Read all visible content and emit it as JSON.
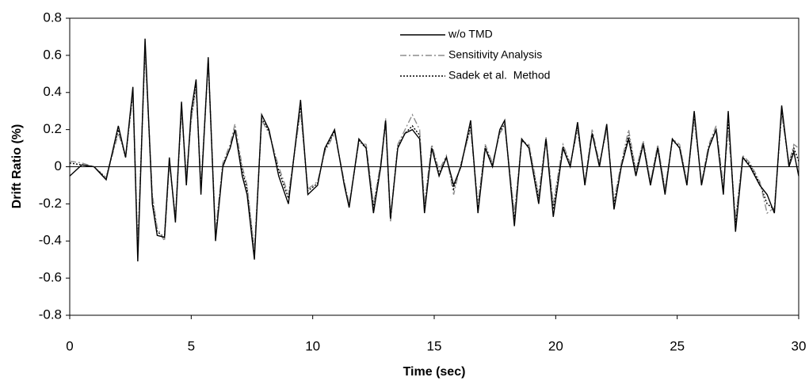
{
  "chart_data": {
    "type": "line",
    "xlabel": "Time (sec)",
    "ylabel": "Drift  Ratio (%)",
    "x": [
      0,
      0.5,
      1,
      1.5,
      2,
      2.3,
      2.6,
      2.8,
      3.1,
      3.4,
      3.6,
      3.9,
      4.1,
      4.35,
      4.6,
      4.8,
      5.0,
      5.2,
      5.4,
      5.7,
      6.0,
      6.3,
      6.6,
      6.8,
      7.1,
      7.3,
      7.6,
      7.9,
      8.2,
      8.6,
      9.0,
      9.5,
      9.8,
      10.2,
      10.5,
      10.9,
      11.3,
      11.5,
      11.9,
      12.2,
      12.5,
      12.8,
      13.0,
      13.2,
      13.5,
      13.8,
      14.1,
      14.4,
      14.6,
      14.9,
      15.2,
      15.5,
      15.8,
      16.1,
      16.5,
      16.8,
      17.1,
      17.4,
      17.7,
      17.9,
      18.3,
      18.6,
      18.9,
      19.3,
      19.6,
      19.9,
      20.3,
      20.6,
      20.9,
      21.2,
      21.5,
      21.8,
      22.1,
      22.4,
      22.7,
      23.0,
      23.3,
      23.6,
      23.9,
      24.2,
      24.5,
      24.8,
      25.1,
      25.4,
      25.7,
      26.0,
      26.3,
      26.6,
      26.9,
      27.1,
      27.4,
      27.7,
      28.0,
      28.4,
      28.7,
      29.0,
      29.3,
      29.6,
      29.8,
      30
    ],
    "series": [
      {
        "name": "w/o TMD",
        "color": "#000000",
        "dash": "solid",
        "values": [
          -0.05,
          0.01,
          0,
          -0.07,
          0.22,
          0.05,
          0.43,
          -0.51,
          0.69,
          -0.2,
          -0.37,
          -0.38,
          0.05,
          -0.3,
          0.35,
          -0.1,
          0.3,
          0.47,
          -0.15,
          0.59,
          -0.4,
          0,
          0.1,
          0.2,
          -0.05,
          -0.15,
          -0.5,
          0.28,
          0.2,
          -0.05,
          -0.2,
          0.36,
          -0.15,
          -0.1,
          0.1,
          0.2,
          -0.1,
          -0.22,
          0.15,
          0.1,
          -0.25,
          0,
          0.25,
          -0.28,
          0.1,
          0.18,
          0.2,
          0.15,
          -0.25,
          0.1,
          -0.05,
          0.05,
          -0.1,
          0,
          0.25,
          -0.25,
          0.1,
          0,
          0.2,
          0.25,
          -0.32,
          0.15,
          0.1,
          -0.2,
          0.15,
          -0.27,
          0.1,
          0,
          0.24,
          -0.1,
          0.18,
          0,
          0.23,
          -0.23,
          0,
          0.15,
          -0.05,
          0.12,
          -0.1,
          0.1,
          -0.15,
          0.15,
          0.1,
          -0.1,
          0.3,
          -0.1,
          0.1,
          0.2,
          -0.15,
          0.3,
          -0.35,
          0.05,
          0,
          -0.1,
          -0.15,
          -0.25,
          0.33,
          0,
          0.08,
          -0.05
        ]
      },
      {
        "name": "Sensitivity Analysis",
        "color": "#8c8c8c",
        "dash": "dashdot",
        "values": [
          0.03,
          0.02,
          0,
          -0.06,
          0.18,
          0.06,
          0.38,
          -0.42,
          0.62,
          -0.15,
          -0.33,
          -0.4,
          0.02,
          -0.27,
          0.3,
          -0.05,
          0.25,
          0.42,
          -0.1,
          0.55,
          -0.35,
          0.02,
          0.12,
          0.23,
          0,
          -0.1,
          -0.45,
          0.25,
          0.18,
          0,
          -0.15,
          0.3,
          -0.12,
          -0.08,
          0.08,
          0.18,
          -0.08,
          -0.2,
          0.13,
          0.12,
          -0.2,
          0.02,
          0.26,
          -0.3,
          0.12,
          0.2,
          0.28,
          0.2,
          -0.2,
          0.12,
          -0.02,
          0.06,
          -0.15,
          0.02,
          0.2,
          -0.2,
          0.12,
          0.02,
          0.18,
          0.22,
          -0.25,
          0.14,
          0.12,
          -0.15,
          0.16,
          -0.2,
          0.12,
          0.02,
          0.2,
          -0.08,
          0.2,
          0.02,
          0.2,
          -0.18,
          0.02,
          0.2,
          -0.02,
          0.14,
          -0.08,
          0.12,
          -0.12,
          0.15,
          0.12,
          -0.08,
          0.25,
          -0.08,
          0.12,
          0.22,
          -0.1,
          0.2,
          -0.28,
          0.06,
          0.02,
          -0.08,
          -0.25,
          -0.22,
          0.28,
          0.02,
          0.12,
          0.1
        ]
      },
      {
        "name": "Sadek et al.  Method",
        "color": "#000000",
        "dash": "dotted",
        "values": [
          0.02,
          0.01,
          0,
          -0.06,
          0.2,
          0.05,
          0.4,
          -0.45,
          0.65,
          -0.18,
          -0.35,
          -0.38,
          0.03,
          -0.28,
          0.32,
          -0.07,
          0.27,
          0.44,
          -0.12,
          0.57,
          -0.37,
          0.01,
          0.1,
          0.2,
          -0.02,
          -0.12,
          -0.47,
          0.26,
          0.19,
          -0.02,
          -0.17,
          0.32,
          -0.13,
          -0.09,
          0.09,
          0.19,
          -0.09,
          -0.21,
          0.14,
          0.1,
          -0.22,
          0.01,
          0.24,
          -0.28,
          0.11,
          0.18,
          0.22,
          0.17,
          -0.22,
          0.11,
          -0.04,
          0.05,
          -0.12,
          0.01,
          0.22,
          -0.22,
          0.11,
          0.01,
          0.19,
          0.23,
          -0.28,
          0.14,
          0.11,
          -0.17,
          0.15,
          -0.23,
          0.11,
          0.01,
          0.21,
          -0.09,
          0.18,
          0.01,
          0.21,
          -0.2,
          0.01,
          0.17,
          -0.03,
          0.13,
          -0.09,
          0.11,
          -0.13,
          0.14,
          0.11,
          -0.09,
          0.27,
          -0.09,
          0.11,
          0.2,
          -0.12,
          0.25,
          -0.3,
          0.05,
          0.01,
          -0.09,
          -0.2,
          -0.23,
          0.3,
          0.01,
          0.1,
          0.03
        ]
      }
    ],
    "xlim": [
      0,
      30
    ],
    "xticks": [
      0,
      5,
      10,
      15,
      20,
      25,
      30
    ],
    "ylim": [
      -0.8,
      0.8
    ],
    "yticks": [
      -0.8,
      -0.6,
      -0.4,
      -0.2,
      0,
      0.2,
      0.4,
      0.6,
      0.8
    ],
    "grid": false,
    "legend": "upper right"
  }
}
